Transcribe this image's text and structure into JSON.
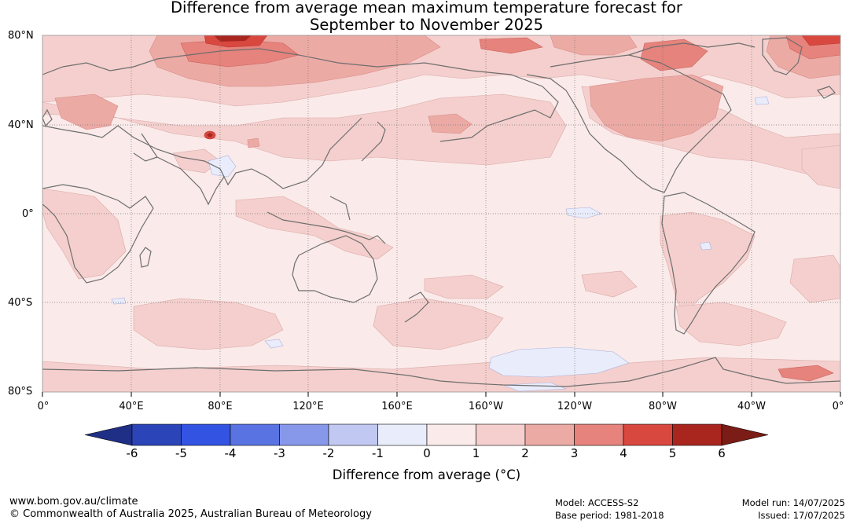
{
  "title": {
    "line1": "Difference from average mean maximum temperature forecast for",
    "line2": "September to November 2025"
  },
  "axes": {
    "lat_labels": [
      "80°N",
      "40°N",
      "0°",
      "40°S",
      "80°S"
    ],
    "lon_labels": [
      "0°",
      "40°E",
      "80°E",
      "120°E",
      "160°E",
      "160°W",
      "120°W",
      "80°W",
      "40°W",
      "0°"
    ]
  },
  "colorbar": {
    "ticks": [
      "-6",
      "-5",
      "-4",
      "-3",
      "-2",
      "-1",
      "0",
      "1",
      "2",
      "3",
      "4",
      "5",
      "6"
    ],
    "colors": [
      "#1f2f86",
      "#2b45b9",
      "#3354e2",
      "#5a73e3",
      "#8797ea",
      "#c1c9f3",
      "#e9ecfb",
      "#fbeaea",
      "#f4cfcd",
      "#ecaaa5",
      "#e5837c",
      "#d9483f",
      "#a9261f",
      "#7b1c16"
    ],
    "label": "Difference from average (°C)"
  },
  "footer": {
    "website": "www.bom.gov.au/climate",
    "copyright": "© Commonwealth of Australia 2025, Australian Bureau of Meteorology",
    "model": "Model: ACCESS-S2",
    "base_period": "Base period: 1981-2018",
    "model_run": "Model run: 14/07/2025",
    "issued": "Issued: 17/07/2025"
  }
}
